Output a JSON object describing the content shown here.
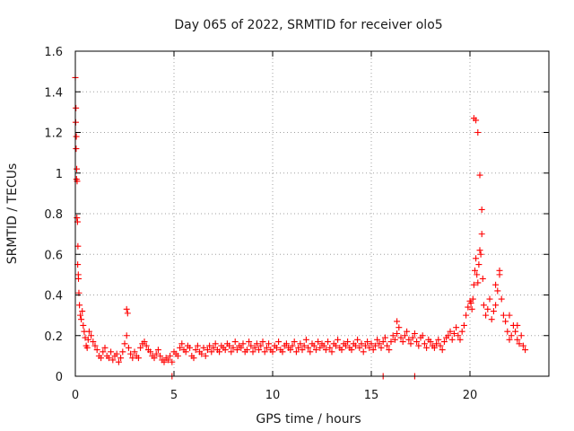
{
  "chart_data": {
    "type": "scatter",
    "title": "Day 065 of 2022, SRMTID for receiver olo5",
    "xlabel": "GPS time / hours",
    "ylabel": "SRMTID / TECUs",
    "xlim": [
      0,
      24
    ],
    "ylim": [
      0,
      1.6
    ],
    "xticks": [
      0,
      5,
      10,
      15,
      20
    ],
    "yticks": [
      0,
      0.2,
      0.4,
      0.6,
      0.8,
      1,
      1.2,
      1.4,
      1.6
    ],
    "xtick_labels": [
      "0",
      "5",
      "10",
      "15",
      "20"
    ],
    "ytick_labels": [
      "0",
      "0.2",
      "0.4",
      "0.6",
      "0.8",
      "1",
      "1.2",
      "1.4",
      "1.6"
    ],
    "grid": true,
    "marker": "+",
    "marker_color": "#ff0000",
    "series": [
      {
        "name": "SRMTID",
        "x": [
          0.0,
          0.03,
          0.05,
          0.07,
          0.09,
          0.11,
          0.13,
          0.15,
          0.18,
          0.21,
          0.25,
          0.3,
          0.35,
          0.4,
          0.45,
          0.5,
          0.55,
          0.6,
          0.65,
          0.7,
          0.8,
          0.9,
          1.0,
          1.1,
          1.2,
          1.3,
          1.4,
          1.5,
          1.6,
          1.7,
          1.8,
          1.9,
          2.0,
          2.1,
          2.2,
          2.3,
          2.4,
          2.5,
          2.6,
          2.65,
          2.7,
          2.8,
          2.9,
          3.0,
          3.1,
          3.2,
          3.3,
          3.4,
          3.5,
          3.6,
          3.7,
          3.8,
          3.9,
          4.0,
          4.1,
          4.2,
          4.3,
          4.4,
          4.5,
          4.6,
          4.7,
          4.8,
          4.9,
          5.0,
          5.1,
          5.2,
          5.3,
          5.4,
          5.5,
          5.6,
          5.7,
          5.8,
          5.9,
          6.0,
          6.1,
          6.2,
          6.3,
          6.4,
          6.5,
          6.6,
          6.7,
          6.8,
          6.9,
          7.0,
          7.1,
          7.2,
          7.3,
          7.4,
          7.5,
          7.6,
          7.7,
          7.8,
          7.9,
          8.0,
          8.1,
          8.2,
          8.3,
          8.4,
          8.5,
          8.6,
          8.7,
          8.8,
          8.9,
          9.0,
          9.1,
          9.2,
          9.3,
          9.4,
          9.5,
          9.6,
          9.7,
          9.8,
          9.9,
          10.0,
          10.1,
          10.2,
          10.3,
          10.4,
          10.5,
          10.6,
          10.7,
          10.8,
          10.9,
          11.0,
          11.1,
          11.2,
          11.3,
          11.4,
          11.5,
          11.6,
          11.7,
          11.8,
          11.9,
          12.0,
          12.1,
          12.2,
          12.3,
          12.4,
          12.5,
          12.6,
          12.7,
          12.8,
          12.9,
          13.0,
          13.1,
          13.2,
          13.3,
          13.4,
          13.5,
          13.6,
          13.7,
          13.8,
          13.9,
          14.0,
          14.1,
          14.2,
          14.3,
          14.4,
          14.5,
          14.6,
          14.7,
          14.8,
          14.9,
          15.0,
          15.1,
          15.2,
          15.3,
          15.4,
          15.5,
          15.6,
          15.7,
          15.8,
          15.9,
          16.0,
          16.1,
          16.2,
          16.3,
          16.4,
          16.5,
          16.6,
          16.7,
          16.8,
          16.9,
          17.0,
          17.1,
          17.2,
          17.3,
          17.4,
          17.5,
          17.6,
          17.7,
          17.8,
          17.9,
          18.0,
          18.1,
          18.2,
          18.3,
          18.4,
          18.5,
          18.6,
          18.7,
          18.8,
          18.9,
          19.0,
          19.1,
          19.2,
          19.3,
          19.4,
          19.5,
          19.6,
          19.7,
          19.8,
          19.9,
          20.0,
          20.05,
          20.1,
          20.15,
          20.2,
          20.25,
          20.3,
          20.35,
          20.4,
          20.45,
          20.5,
          20.55,
          20.6,
          20.65,
          20.7,
          20.8,
          20.9,
          21.0,
          21.1,
          21.2,
          21.3,
          21.4,
          21.5,
          21.6,
          21.7,
          21.8,
          21.9,
          22.0,
          22.1,
          22.2,
          22.3,
          22.4,
          22.5,
          22.6,
          22.7,
          22.8,
          4.9,
          15.6,
          17.2,
          0.02,
          0.04,
          0.06,
          0.08,
          0.12,
          0.16,
          20.2,
          20.3,
          20.4,
          20.5,
          20.6,
          21.3,
          21.5,
          22.0,
          22.4,
          2.6,
          16.3
        ],
        "y": [
          1.47,
          1.32,
          1.18,
          1.02,
          0.96,
          0.76,
          0.64,
          0.5,
          0.41,
          0.35,
          0.3,
          0.28,
          0.32,
          0.25,
          0.22,
          0.19,
          0.15,
          0.14,
          0.18,
          0.22,
          0.2,
          0.17,
          0.15,
          0.13,
          0.1,
          0.09,
          0.12,
          0.14,
          0.1,
          0.09,
          0.12,
          0.08,
          0.1,
          0.11,
          0.07,
          0.09,
          0.12,
          0.16,
          0.2,
          0.31,
          0.14,
          0.11,
          0.09,
          0.12,
          0.1,
          0.09,
          0.14,
          0.16,
          0.17,
          0.15,
          0.13,
          0.12,
          0.1,
          0.09,
          0.11,
          0.13,
          0.1,
          0.08,
          0.07,
          0.09,
          0.08,
          0.1,
          0.07,
          0.12,
          0.11,
          0.1,
          0.14,
          0.16,
          0.13,
          0.12,
          0.15,
          0.14,
          0.1,
          0.09,
          0.13,
          0.15,
          0.12,
          0.11,
          0.14,
          0.1,
          0.13,
          0.15,
          0.12,
          0.14,
          0.16,
          0.13,
          0.12,
          0.15,
          0.14,
          0.13,
          0.16,
          0.15,
          0.12,
          0.14,
          0.17,
          0.13,
          0.15,
          0.14,
          0.16,
          0.12,
          0.13,
          0.17,
          0.15,
          0.12,
          0.14,
          0.16,
          0.13,
          0.15,
          0.17,
          0.12,
          0.14,
          0.16,
          0.13,
          0.12,
          0.15,
          0.14,
          0.17,
          0.13,
          0.12,
          0.15,
          0.16,
          0.14,
          0.13,
          0.15,
          0.17,
          0.12,
          0.14,
          0.16,
          0.13,
          0.15,
          0.18,
          0.14,
          0.12,
          0.16,
          0.15,
          0.13,
          0.17,
          0.14,
          0.16,
          0.15,
          0.13,
          0.17,
          0.14,
          0.12,
          0.16,
          0.15,
          0.18,
          0.14,
          0.13,
          0.16,
          0.15,
          0.17,
          0.14,
          0.13,
          0.16,
          0.15,
          0.18,
          0.14,
          0.16,
          0.12,
          0.15,
          0.17,
          0.14,
          0.16,
          0.13,
          0.15,
          0.18,
          0.16,
          0.14,
          0.17,
          0.19,
          0.15,
          0.13,
          0.17,
          0.2,
          0.18,
          0.21,
          0.24,
          0.19,
          0.17,
          0.2,
          0.22,
          0.18,
          0.16,
          0.19,
          0.21,
          0.17,
          0.15,
          0.19,
          0.2,
          0.16,
          0.14,
          0.18,
          0.17,
          0.15,
          0.14,
          0.16,
          0.18,
          0.15,
          0.13,
          0.17,
          0.19,
          0.2,
          0.22,
          0.18,
          0.21,
          0.24,
          0.2,
          0.18,
          0.22,
          0.25,
          0.3,
          0.34,
          0.37,
          0.36,
          0.33,
          0.38,
          0.45,
          0.52,
          0.58,
          0.5,
          0.46,
          0.55,
          0.62,
          0.6,
          0.7,
          0.48,
          0.35,
          0.3,
          0.33,
          0.38,
          0.28,
          0.32,
          0.35,
          0.42,
          0.5,
          0.38,
          0.3,
          0.27,
          0.22,
          0.18,
          0.2,
          0.25,
          0.22,
          0.18,
          0.16,
          0.2,
          0.15,
          0.13,
          0.0,
          0.0,
          0.0,
          1.25,
          1.12,
          0.97,
          0.78,
          0.55,
          0.48,
          1.27,
          1.26,
          1.2,
          0.99,
          0.82,
          0.45,
          0.52,
          0.3,
          0.25,
          0.33,
          0.27
        ]
      }
    ]
  }
}
